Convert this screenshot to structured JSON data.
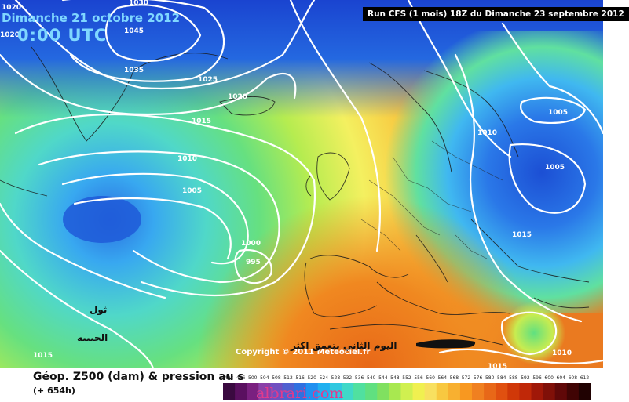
{
  "header": {
    "date": "Dimanche 21 octobre 2012",
    "time": "0:00 UTC",
    "run_info": "Run CFS (1 mois) 18Z du Dimanche 23 septembre 2012"
  },
  "footer": {
    "parameter": "Géop. Z500 (dam) & pression au s",
    "lead_time": "(+ 654h)",
    "copyright": "Copyright © 2011 Meteociel.fr",
    "watermark": "albrari.com"
  },
  "overlay_text": {
    "arabic_top": "ثول",
    "arabic_mid": "الحبيبه",
    "arabic_right": "اليوم الثاني بتعمق اكثر"
  },
  "isobar_labels": [
    "1030",
    "1020",
    "1020",
    "1045",
    "1035",
    "1025",
    "1020",
    "1015",
    "1010",
    "1005",
    "1000",
    "995",
    "1015",
    "1010",
    "1005",
    "1005",
    "1015",
    "1010",
    "1015"
  ],
  "colors": {
    "z500_low": "#1e5ad8",
    "z500_mid": "#50c878",
    "z500_high": "#f0a030",
    "isobar": "#ffffff"
  },
  "scale": {
    "labels": [
      "492",
      "496",
      "500",
      "504",
      "508",
      "512",
      "516",
      "520",
      "524",
      "528",
      "532",
      "536",
      "540",
      "544",
      "548",
      "552",
      "556",
      "560",
      "564",
      "568",
      "572",
      "576",
      "580",
      "584",
      "588",
      "592",
      "596",
      "600",
      "604",
      "608",
      "612"
    ],
    "colors": [
      "#3a0a40",
      "#5a1060",
      "#7a2080",
      "#8a40a8",
      "#7050c0",
      "#5060d0",
      "#3070e0",
      "#2090f0",
      "#20b0f0",
      "#30c8e0",
      "#40d8c8",
      "#50e0a0",
      "#60e080",
      "#80e060",
      "#a8e850",
      "#d0f050",
      "#f0f050",
      "#f8e060",
      "#f8c840",
      "#f8b030",
      "#f89820",
      "#f08020",
      "#e86818",
      "#e05010",
      "#d03808",
      "#c02808",
      "#a01808",
      "#801008",
      "#600808",
      "#400404",
      "#200202"
    ]
  }
}
